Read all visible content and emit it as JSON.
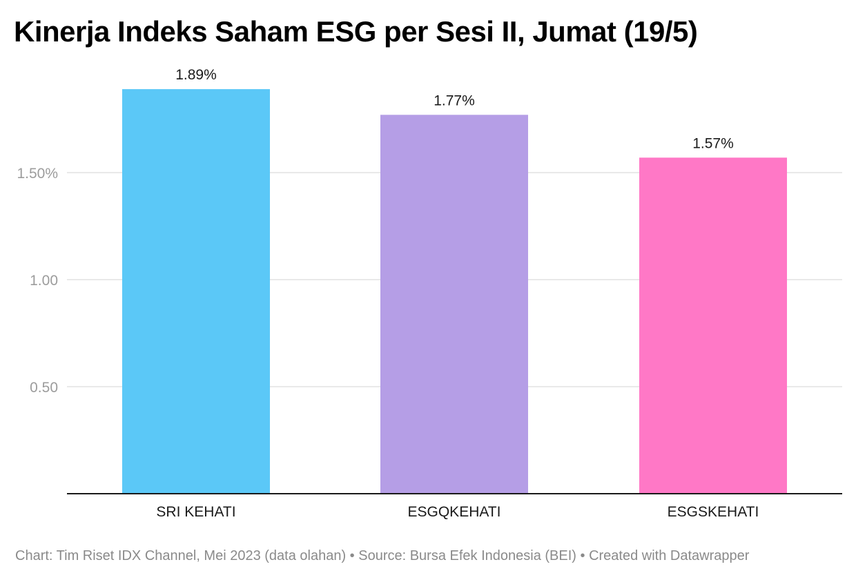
{
  "chart_data": {
    "type": "bar",
    "title": "Kinerja Indeks Saham ESG per Sesi II, Jumat (19/5)",
    "categories": [
      "SRI KEHATI",
      "ESGQKEHATI",
      "ESGSKEHATI"
    ],
    "values": [
      1.89,
      1.77,
      1.57
    ],
    "data_labels": [
      "1.89%",
      "1.77%",
      "1.57%"
    ],
    "colors": [
      "#5bc8f7",
      "#b59ee6",
      "#ff78c6"
    ],
    "y_ticks": [
      {
        "value": 0.5,
        "label": "0.50"
      },
      {
        "value": 1.0,
        "label": "1.00"
      },
      {
        "value": 1.5,
        "label": "1.50%"
      }
    ],
    "ylim": [
      0,
      2.0
    ],
    "xlabel": "",
    "ylabel": "",
    "grid": true,
    "legend": "none"
  },
  "footer": {
    "credit": "Chart: Tim Riset IDX Channel, Mei 2023 (data olahan) • Source: Bursa Efek Indonesia (BEI) • Created with Datawrapper"
  }
}
